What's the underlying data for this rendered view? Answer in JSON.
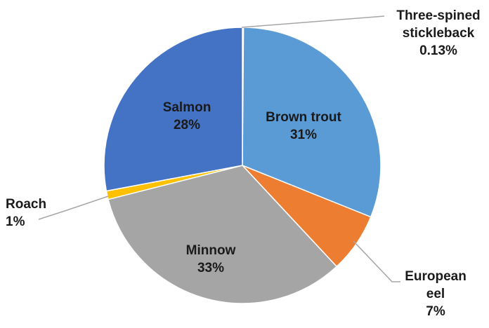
{
  "chart_data": {
    "type": "pie",
    "title": "",
    "slices": [
      {
        "name": "Three-spined stickleback",
        "label_lines": [
          "Three-spined",
          "stickleback",
          "0.13%"
        ],
        "value": 0.13,
        "color": "#3d63b6"
      },
      {
        "name": "Brown trout",
        "label_lines": [
          "Brown trout",
          "31%"
        ],
        "value": 31,
        "color": "#5b9bd5"
      },
      {
        "name": "European eel",
        "label_lines": [
          "European",
          "eel",
          "7%"
        ],
        "value": 7,
        "color": "#ed7d31"
      },
      {
        "name": "Minnow",
        "label_lines": [
          "Minnow",
          "33%"
        ],
        "value": 33,
        "color": "#a5a5a5"
      },
      {
        "name": "Roach",
        "label_lines": [
          "Roach",
          "1%"
        ],
        "value": 1,
        "color": "#ffc000"
      },
      {
        "name": "Salmon",
        "label_lines": [
          "Salmon",
          "28%"
        ],
        "value": 28,
        "color": "#4472c4"
      }
    ],
    "start_angle_deg": 0,
    "direction": "clockwise",
    "legend": "none",
    "leader_line_color": "#a6a6a6",
    "label_color": "#1a1a1a",
    "slice_border_color": "#ffffff"
  }
}
